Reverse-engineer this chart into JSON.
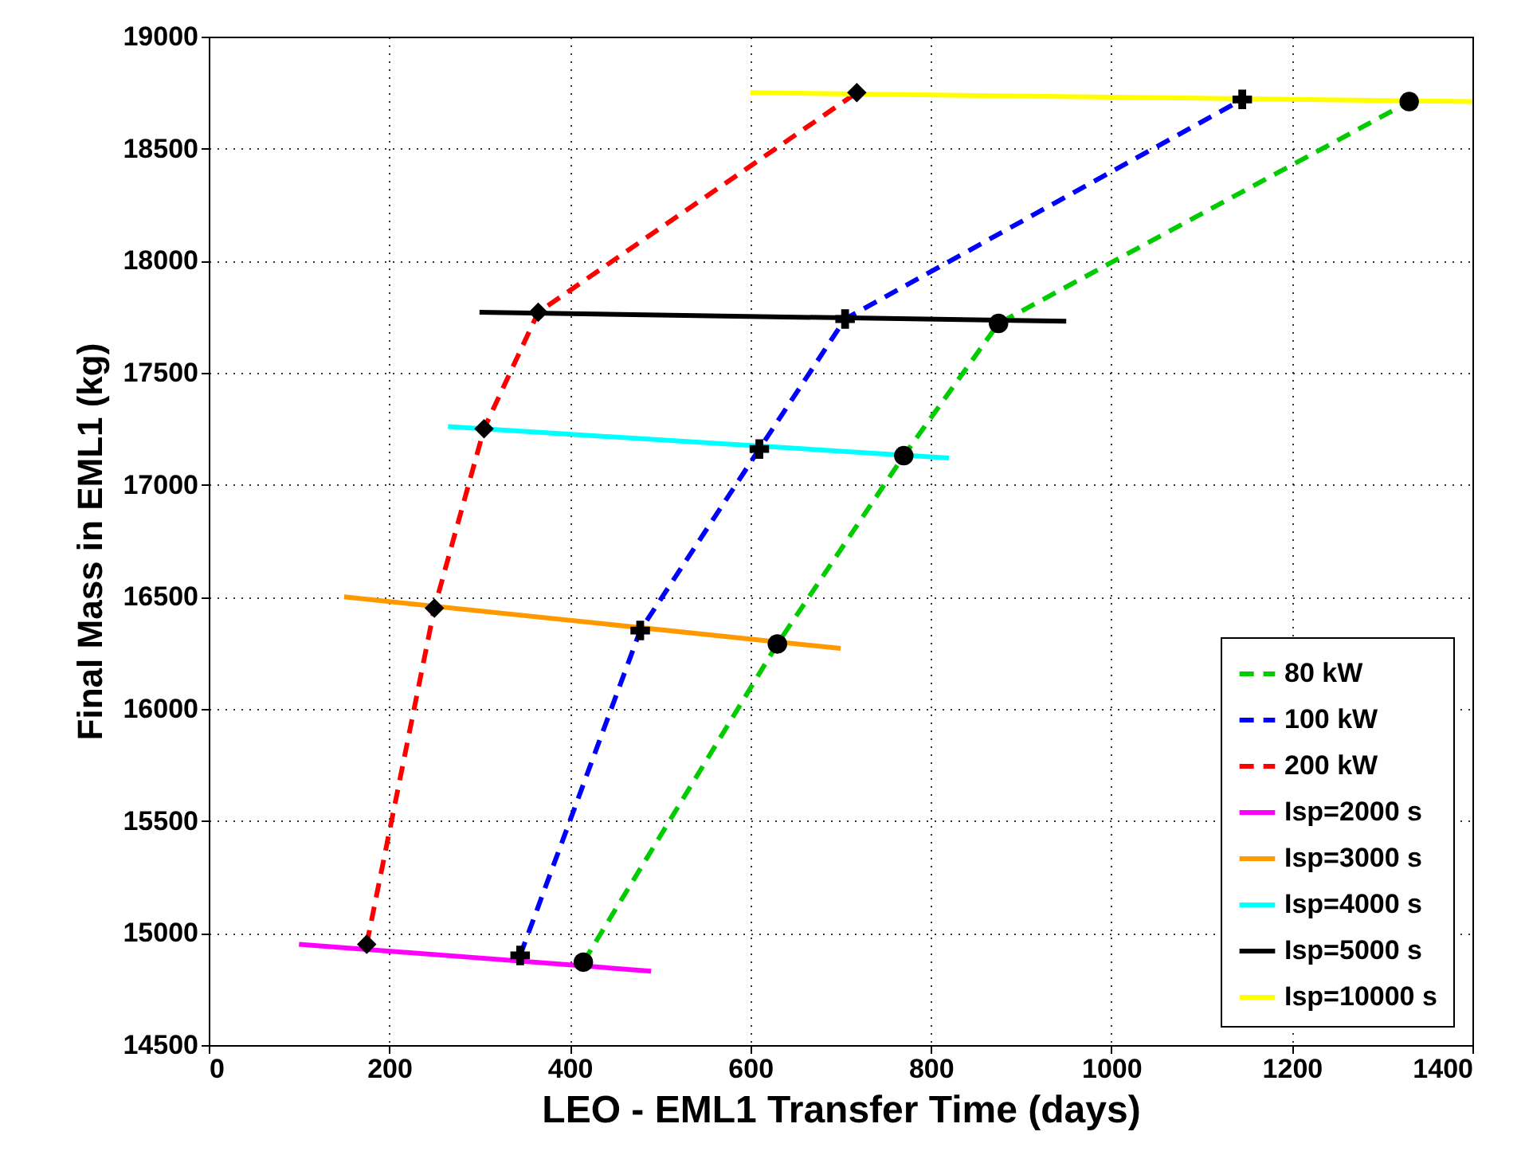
{
  "chart_data": {
    "type": "line",
    "xlabel": "LEO - EML1 Transfer Time (days)",
    "ylabel": "Final Mass in EML1 (kg)",
    "xlim": [
      0,
      1400
    ],
    "xticks": [
      0,
      200,
      400,
      600,
      800,
      1000,
      1200,
      1400
    ],
    "ylim": [
      14500,
      19000
    ],
    "yticks": [
      14500,
      15000,
      15500,
      16000,
      16500,
      17000,
      17500,
      18000,
      18500,
      19000
    ],
    "grid": true,
    "legend": "bottom right",
    "series": [
      {
        "name": "80 kW",
        "color": "#00cc00",
        "line_style": "dashed",
        "marker": "circle",
        "x": [
          415,
          630,
          770,
          875,
          1330
        ],
        "values": [
          14870,
          16290,
          17130,
          17720,
          18710
        ]
      },
      {
        "name": "100 kW",
        "color": "#0000ff",
        "line_style": "dashed",
        "marker": "cross",
        "x": [
          345,
          478,
          610,
          705,
          1145
        ],
        "values": [
          14900,
          16350,
          17160,
          17740,
          18720
        ]
      },
      {
        "name": "200 kW",
        "color": "#ff0000",
        "line_style": "dashed",
        "marker": "diamond",
        "x": [
          175,
          250,
          305,
          365,
          718
        ],
        "values": [
          14950,
          16450,
          17250,
          17770,
          18750
        ]
      },
      {
        "name": "Isp=2000 s",
        "color": "#ff00ff",
        "line_style": "solid",
        "marker": "none",
        "x": [
          100,
          490
        ],
        "values": [
          14950,
          14830
        ]
      },
      {
        "name": "Isp=3000 s",
        "color": "#ff9900",
        "line_style": "solid",
        "marker": "none",
        "x": [
          150,
          700
        ],
        "values": [
          16500,
          16270
        ]
      },
      {
        "name": "Isp=4000 s",
        "color": "#00ffff",
        "line_style": "solid",
        "marker": "none",
        "x": [
          265,
          820
        ],
        "values": [
          17260,
          17120
        ]
      },
      {
        "name": "Isp=5000 s",
        "color": "#000000",
        "line_style": "solid",
        "marker": "none",
        "x": [
          300,
          950
        ],
        "values": [
          17770,
          17730
        ]
      },
      {
        "name": "Isp=10000 s",
        "color": "#ffff00",
        "line_style": "solid",
        "marker": "none",
        "x": [
          600,
          1400
        ],
        "values": [
          18750,
          18710
        ]
      }
    ]
  }
}
